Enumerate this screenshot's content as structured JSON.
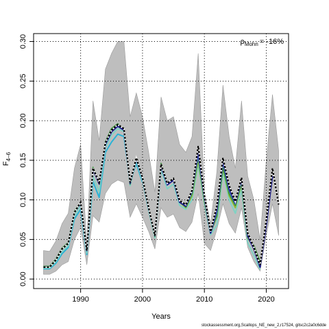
{
  "chart_data": {
    "type": "line",
    "xlabel": "Years",
    "ylabel_main": "F",
    "ylabel_sub": "4–6",
    "xlim": [
      1982.4,
      2023.6
    ],
    "ylim": [
      -0.012,
      0.31
    ],
    "xticks": [
      1990,
      2000,
      2010,
      2020
    ],
    "yticks": [
      0.0,
      0.05,
      0.1,
      0.15,
      0.2,
      0.25,
      0.3
    ],
    "ytick_labels": [
      "0.00",
      "0.05",
      "0.10",
      "0.15",
      "0.20",
      "0.25",
      "0.30"
    ],
    "grid": true,
    "annotation": {
      "rho_main": "ρ",
      "rho_sub": "Mohn",
      "rho_value": "= -16%"
    },
    "years": [
      1984,
      1985,
      1986,
      1987,
      1988,
      1989,
      1990,
      1991,
      1992,
      1993,
      1994,
      1995,
      1996,
      1997,
      1998,
      1999,
      2000,
      2001,
      2002,
      2003,
      2004,
      2005,
      2006,
      2007,
      2008,
      2009,
      2010,
      2011,
      2012,
      2013,
      2014,
      2015,
      2016,
      2017,
      2018,
      2019,
      2020,
      2021,
      2022
    ],
    "ci_upper": [
      0.036,
      0.035,
      0.048,
      0.07,
      0.083,
      0.14,
      0.17,
      0.045,
      0.225,
      0.175,
      0.265,
      0.285,
      0.3,
      0.3,
      0.205,
      0.235,
      0.205,
      0.16,
      0.11,
      0.23,
      0.2,
      0.205,
      0.17,
      0.16,
      0.18,
      0.285,
      0.11,
      0.07,
      0.135,
      0.245,
      0.18,
      0.14,
      0.225,
      0.13,
      0.1,
      0.05,
      0.15,
      0.233,
      0.162
    ],
    "ci_lower": [
      0.006,
      0.006,
      0.01,
      0.018,
      0.022,
      0.05,
      0.065,
      0.018,
      0.08,
      0.072,
      0.108,
      0.12,
      0.125,
      0.122,
      0.078,
      0.095,
      0.078,
      0.06,
      0.038,
      0.09,
      0.078,
      0.082,
      0.065,
      0.06,
      0.072,
      0.108,
      0.045,
      0.036,
      0.062,
      0.095,
      0.07,
      0.058,
      0.09,
      0.04,
      0.022,
      0.01,
      0.055,
      0.095,
      0.055
    ],
    "series": [
      {
        "color": "#2ab3d6",
        "values": [
          0.013,
          0.013,
          0.02,
          0.032,
          0.04,
          0.076,
          0.088,
          0.031,
          0.123,
          0.103,
          0.16,
          0.173,
          0.183,
          0.18,
          0.123,
          0.146,
          0.122,
          null,
          null,
          null,
          null,
          null,
          null,
          null,
          null,
          null,
          null,
          null,
          null,
          null,
          null,
          null,
          null,
          null,
          null,
          null,
          null,
          null,
          null
        ]
      },
      {
        "color": "#7fd3c4",
        "values": [
          0.014,
          0.014,
          0.022,
          0.035,
          0.042,
          0.08,
          0.093,
          0.033,
          0.13,
          0.11,
          0.166,
          0.182,
          0.19,
          0.186,
          0.118,
          0.15,
          0.124,
          0.086,
          0.052,
          0.138,
          0.114,
          0.12,
          0.093,
          0.088,
          0.1,
          0.144,
          0.095,
          0.056,
          0.068,
          0.135,
          0.1,
          0.083,
          0.113,
          0.046,
          0.03,
          0.012,
          null,
          null,
          null
        ]
      },
      {
        "color": "#8fbc3a",
        "values": [
          0.015,
          0.015,
          0.024,
          0.038,
          0.045,
          0.084,
          0.096,
          0.036,
          0.14,
          0.12,
          0.172,
          0.188,
          0.195,
          0.19,
          0.121,
          0.153,
          0.128,
          0.09,
          0.055,
          0.145,
          0.12,
          0.126,
          0.097,
          0.09,
          0.105,
          0.15,
          0.098,
          0.06,
          0.078,
          0.14,
          0.105,
          0.09,
          0.12,
          0.052,
          0.04,
          0.02,
          null,
          null,
          null
        ]
      },
      {
        "color": "#3c8f3c",
        "values": [
          0.016,
          0.016,
          0.025,
          0.039,
          0.046,
          0.085,
          0.097,
          0.037,
          0.141,
          0.121,
          0.173,
          0.19,
          0.196,
          0.189,
          0.12,
          0.153,
          0.127,
          0.089,
          0.054,
          0.146,
          0.121,
          0.127,
          0.098,
          0.091,
          0.108,
          0.155,
          0.1,
          0.058,
          0.08,
          0.142,
          0.108,
          0.093,
          0.122,
          0.054,
          0.042,
          0.022,
          null,
          null,
          null
        ]
      },
      {
        "color": "#4a6fdc",
        "values": [
          0.015,
          0.015,
          0.024,
          0.038,
          0.045,
          0.084,
          0.096,
          0.036,
          0.139,
          0.12,
          0.17,
          0.186,
          0.193,
          0.188,
          0.121,
          0.152,
          0.127,
          0.089,
          0.055,
          0.143,
          0.119,
          0.125,
          0.097,
          0.092,
          0.11,
          0.158,
          0.102,
          0.058,
          0.085,
          0.148,
          0.112,
          0.095,
          0.125,
          0.055,
          0.04,
          0.015,
          0.07,
          null,
          null
        ]
      },
      {
        "color": "#1a1a8c",
        "values": [
          0.015,
          0.015,
          0.024,
          0.038,
          0.045,
          0.084,
          0.096,
          0.036,
          0.139,
          0.12,
          0.17,
          0.186,
          0.193,
          0.188,
          0.121,
          0.152,
          0.127,
          0.089,
          0.055,
          0.143,
          0.119,
          0.125,
          0.097,
          0.092,
          0.112,
          0.162,
          0.104,
          0.058,
          0.088,
          0.15,
          0.114,
          0.096,
          0.126,
          0.054,
          0.038,
          0.015,
          0.068,
          0.13,
          null
        ]
      },
      {
        "color": "#000000",
        "dashed": true,
        "values": [
          0.015,
          0.015,
          0.024,
          0.038,
          0.045,
          0.084,
          0.097,
          0.036,
          0.14,
          0.122,
          0.172,
          0.188,
          0.195,
          0.19,
          0.122,
          0.153,
          0.128,
          0.09,
          0.055,
          0.145,
          0.121,
          0.127,
          0.099,
          0.094,
          0.112,
          0.168,
          0.106,
          0.06,
          0.092,
          0.153,
          0.118,
          0.098,
          0.128,
          0.058,
          0.04,
          0.018,
          0.075,
          0.14,
          0.094
        ]
      }
    ]
  },
  "footer_text": "stockassessment.org,Scallops_NE_new_2,r17524, gitsc2c2a0c6dde"
}
